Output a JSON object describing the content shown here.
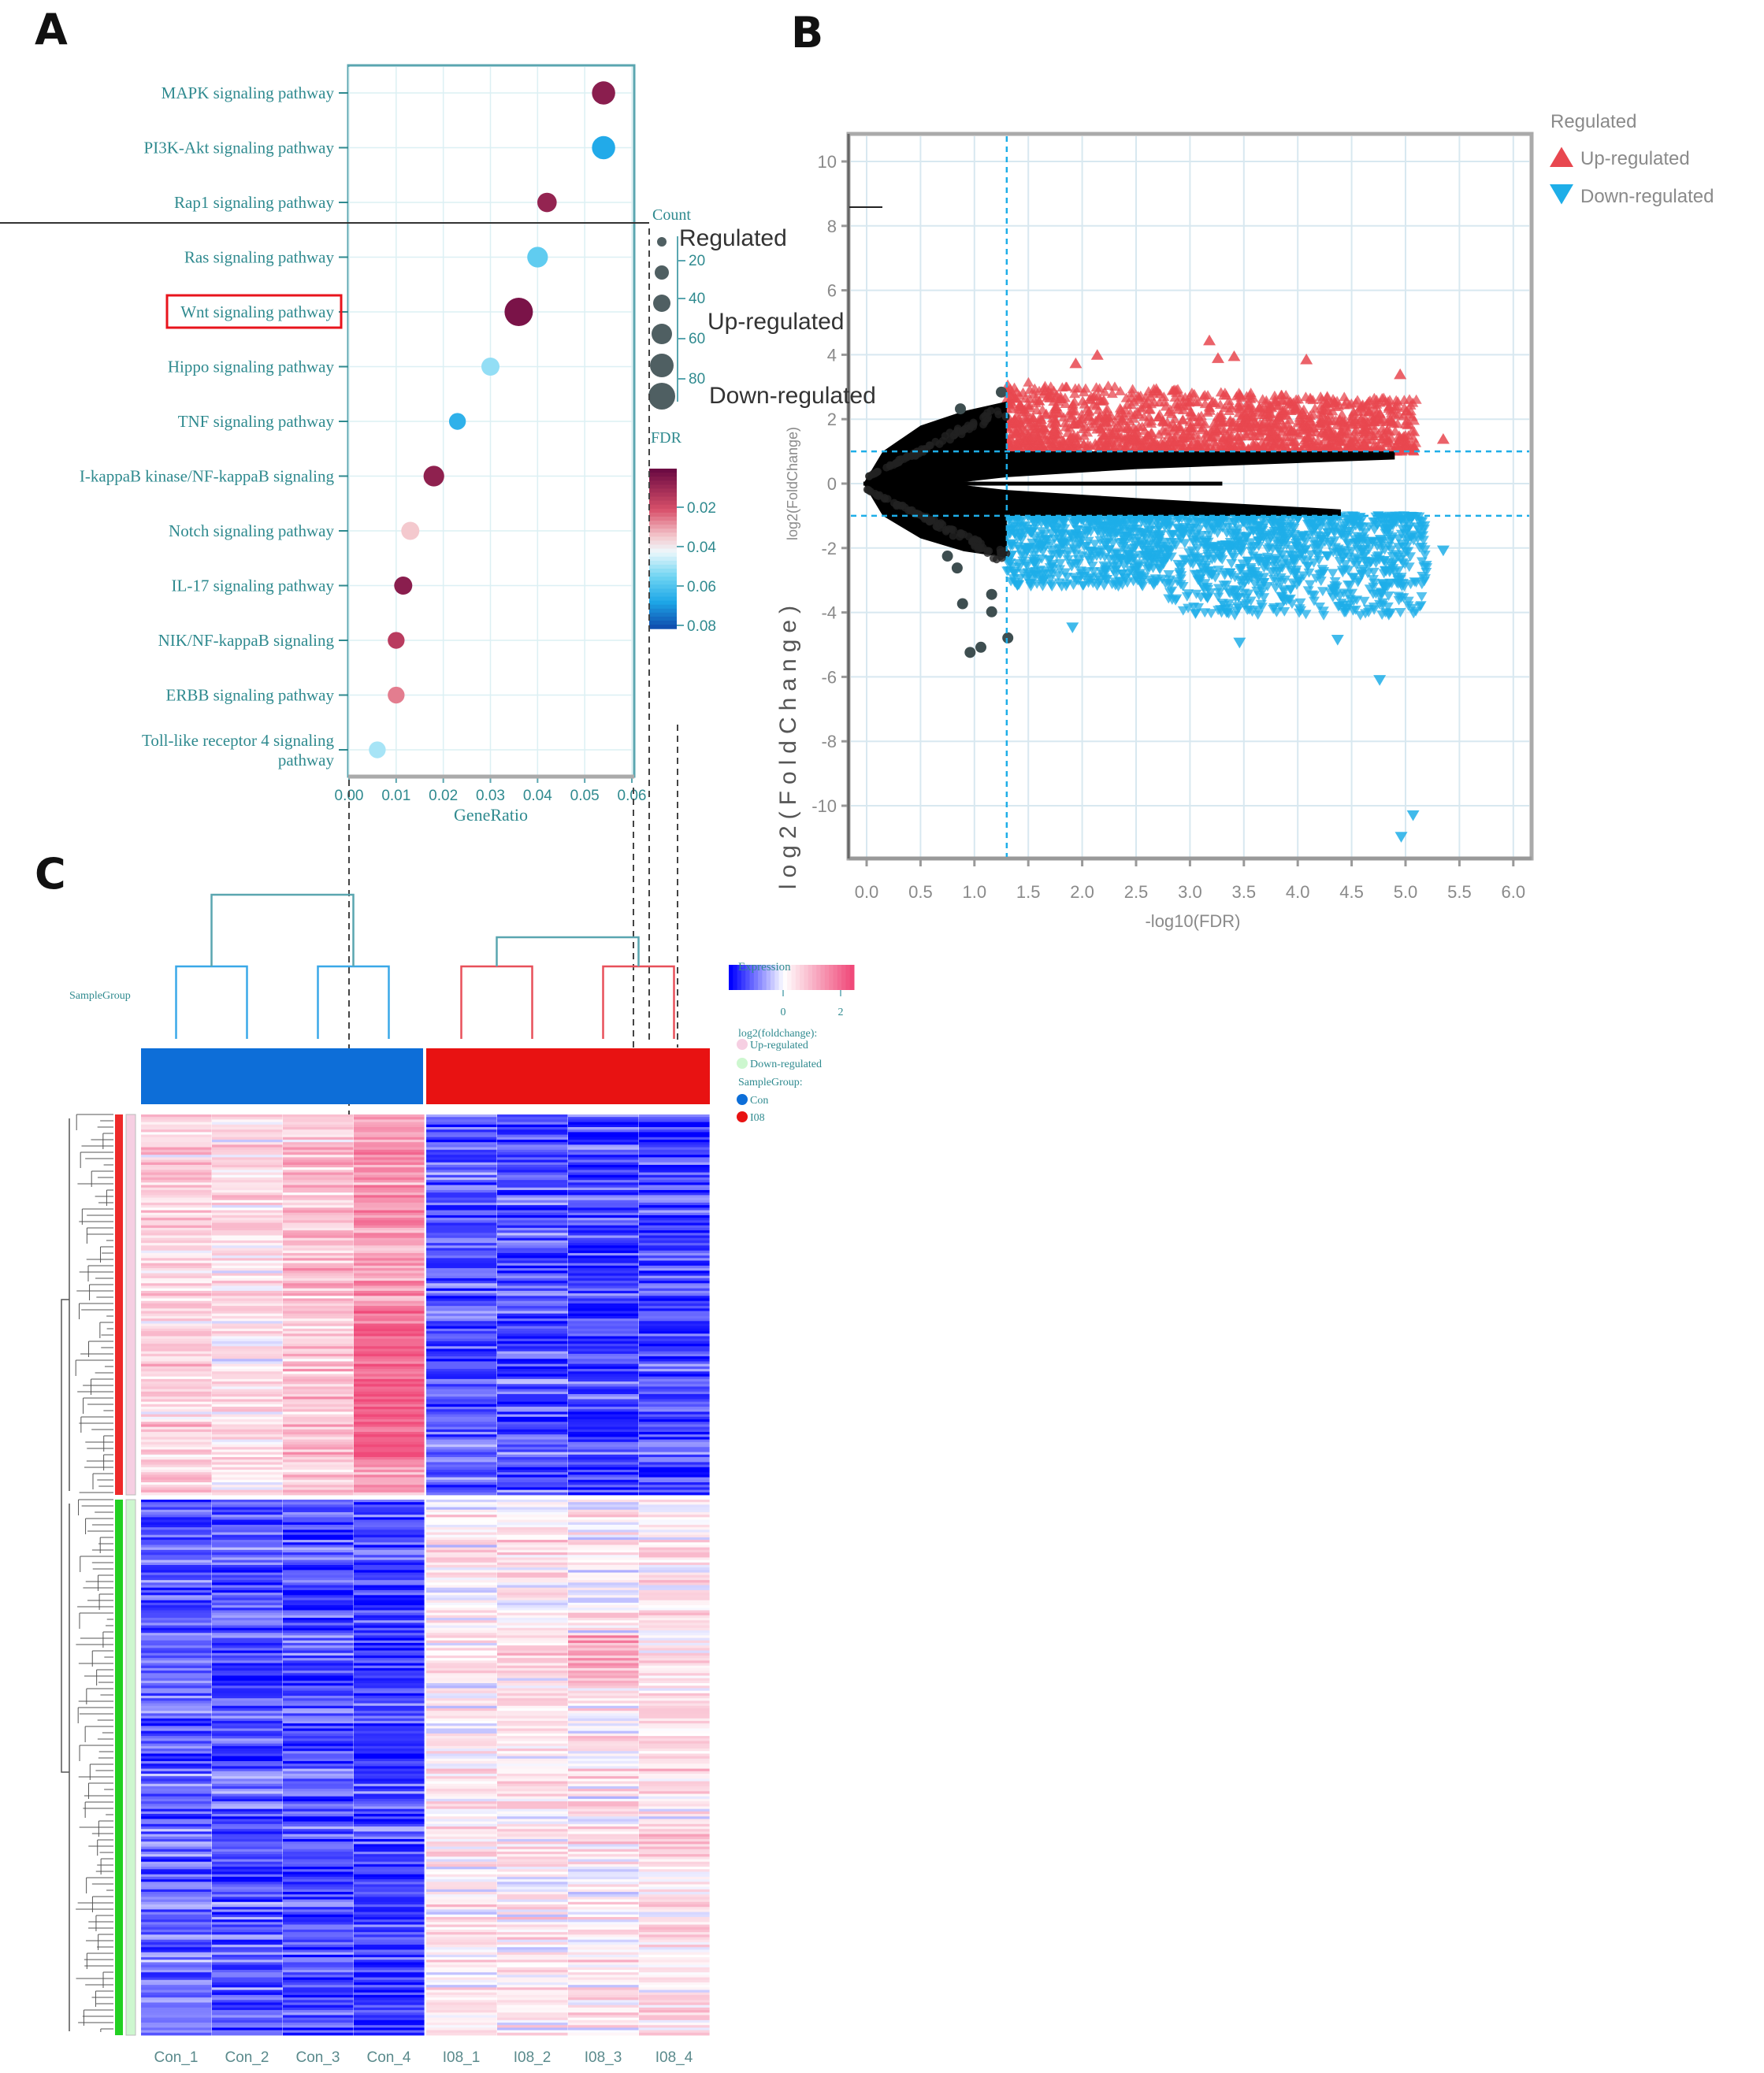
{
  "panels": {
    "a": "A",
    "b": "B",
    "c": "C"
  },
  "chart_data": [
    {
      "type": "scatter",
      "subtype": "dot-plot",
      "xlabel": "GeneRatio",
      "xlim": [
        0,
        0.06
      ],
      "xticks": [
        "0.00",
        "0.01",
        "0.02",
        "0.03",
        "0.04",
        "0.05",
        "0.06"
      ],
      "grid": true,
      "categories": [
        "MAPK signaling pathway",
        "PI3K-Akt signaling pathway",
        "Rap1 signaling pathway",
        "Ras signaling pathway",
        "Wnt signaling pathway",
        "Hippo signaling pathway",
        "TNF signaling pathway",
        "I-kappaB kinase/NF-kappaB signaling",
        "Notch signaling pathway",
        "IL-17 signaling pathway",
        "NIK/NF-kappaB signaling",
        "ERBB signaling pathway",
        "Toll-like receptor 4 signaling pathway"
      ],
      "gene_ratio": [
        0.054,
        0.054,
        0.042,
        0.04,
        0.036,
        0.03,
        0.023,
        0.018,
        0.013,
        0.0115,
        0.01,
        0.01,
        0.006
      ],
      "count": [
        60,
        60,
        45,
        50,
        80,
        40,
        35,
        50,
        40,
        40,
        35,
        35,
        35
      ],
      "fdr": [
        0.006,
        0.068,
        0.008,
        0.058,
        0.003,
        0.052,
        0.066,
        0.007,
        0.035,
        0.006,
        0.015,
        0.026,
        0.05
      ],
      "highlighted": "Wnt signaling pathway",
      "highlight_color": "#e8141c",
      "size_legend": {
        "title": "Count",
        "values": [
          "20",
          "40",
          "60",
          "80"
        ]
      },
      "color_legend": {
        "title": "FDR",
        "ticks": [
          "0.02",
          "0.04",
          "0.06",
          "0.08"
        ],
        "low_color": "#6d0b43",
        "mid_color": "#f2f2f2",
        "high_color": "#1050b0"
      },
      "legend_placement": "right"
    },
    {
      "type": "scatter",
      "subtype": "volcano",
      "xlabel": "-log10(FDR)",
      "ylabel": "log2(FoldChange)",
      "xlim": [
        -0.2,
        6.2
      ],
      "ylim": [
        -11.5,
        11
      ],
      "xticks": [
        "0.0",
        "0.5",
        "1.0",
        "1.5",
        "2.0",
        "2.5",
        "3.0",
        "3.5",
        "4.0",
        "4.5",
        "5.0",
        "5.5",
        "6.0"
      ],
      "yticks": [
        "10",
        "8",
        "6",
        "4",
        "2",
        "0",
        "-2",
        "-4",
        "-6",
        "-8",
        "-10"
      ],
      "grid": true,
      "thresholds": {
        "x": 1.3,
        "y": [
          -1,
          1
        ],
        "color": "#1eaee8"
      },
      "legend": {
        "title": "Regulated",
        "placement": "right",
        "items": [
          {
            "label": "Up-regulated",
            "color": "#e8474f",
            "marker": "triangle-up"
          },
          {
            "label": "Down-regulated",
            "color": "#1eaee8",
            "marker": "triangle-down"
          }
        ]
      },
      "not_significant_color": "#000000",
      "outliers": {
        "up": [
          [
            3.18,
            4.45
          ],
          [
            2.14,
            4.0
          ],
          [
            1.94,
            3.74
          ],
          [
            3.41,
            3.96
          ],
          [
            4.08,
            3.86
          ],
          [
            4.95,
            3.4
          ],
          [
            5.35,
            1.39
          ],
          [
            3.26,
            3.9
          ]
        ],
        "down": [
          [
            4.96,
            -10.97
          ],
          [
            5.07,
            -10.3
          ],
          [
            4.76,
            -6.1
          ],
          [
            3.46,
            -4.94
          ],
          [
            4.37,
            -4.85
          ],
          [
            1.91,
            -4.47
          ],
          [
            5.35,
            -2.08
          ],
          [
            1.4,
            -3.15
          ]
        ],
        "not_significant": [
          [
            0.96,
            -5.24
          ],
          [
            1.06,
            -5.08
          ],
          [
            1.31,
            -4.79
          ],
          [
            0.89,
            -3.73
          ],
          [
            1.16,
            -3.44
          ],
          [
            1.16,
            -3.98
          ],
          [
            0.84,
            -2.62
          ],
          [
            0.75,
            -2.25
          ],
          [
            1.25,
            2.84
          ],
          [
            0.87,
            2.32
          ]
        ]
      }
    },
    {
      "type": "heatmap",
      "columns": [
        "Con_1",
        "Con_2",
        "Con_3",
        "Con_4",
        "I08_1",
        "I08_2",
        "I08_3",
        "I08_4"
      ],
      "column_groups": [
        "Con",
        "Con",
        "Con",
        "Con",
        "I08",
        "I08",
        "I08",
        "I08"
      ],
      "row_groups": [
        {
          "label": "Up-regulated",
          "pattern": "high in Con"
        },
        {
          "label": "Down-regulated",
          "pattern": "high in I08"
        }
      ],
      "annotation_title": "SampleGroup",
      "legend": {
        "expression_title": "Expression",
        "expression_ticks": [
          "0",
          "2"
        ],
        "expression_colors": [
          "#0000ff",
          "#ffffff",
          "#f04a7a"
        ],
        "fold_title": "log2(foldchange):",
        "fold_items": [
          {
            "label": "Up-regulated",
            "color": "#f6cfe2"
          },
          {
            "label": "Down-regulated",
            "color": "#cdf7cf"
          }
        ],
        "group_title": "SampleGroup:",
        "group_items": [
          {
            "label": "Con",
            "color": "#0d6ed8"
          },
          {
            "label": "I08",
            "color": "#e81212"
          }
        ]
      }
    }
  ],
  "ghost_text": {
    "regulated": "Regulated",
    "up": "Up-regulated",
    "down": "Down-regulated",
    "ylabel": "log2(FoldChange)"
  }
}
